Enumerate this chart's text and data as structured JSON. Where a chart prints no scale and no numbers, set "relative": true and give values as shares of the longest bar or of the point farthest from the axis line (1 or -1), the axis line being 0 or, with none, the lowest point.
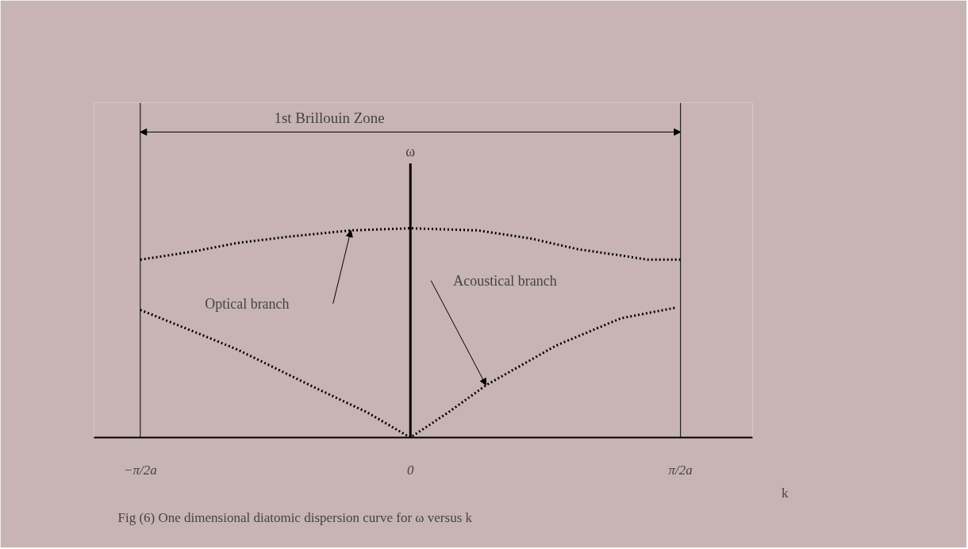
{
  "chart_data": {
    "type": "line",
    "relative": true,
    "xlabel": "k",
    "xlim": [
      -1.84,
      1.99
    ],
    "xticks": [
      {
        "value": -1.571,
        "label": "−π/2a"
      },
      0,
      {
        "value": 1.571,
        "label": "π/2a"
      }
    ],
    "grid": false,
    "line_style": "dotted",
    "series": [
      {
        "color": "#000000",
        "x": [
          -1.571,
          -1.257,
          -1.005,
          -0.707,
          -0.346,
          0.0,
          0.393,
          0.707,
          0.974,
          1.225,
          1.382,
          1.571
        ],
        "values": [
          0.85,
          0.89,
          0.93,
          0.96,
          0.99,
          1.0,
          0.99,
          0.95,
          0.9,
          0.87,
          0.85,
          0.85
        ]
      },
      {
        "color": "#000000",
        "x": [
          -1.571,
          -1.241,
          -1.005,
          -0.534,
          -0.251,
          0.0,
          0.22,
          0.44,
          0.848,
          1.225,
          1.539
        ],
        "values": [
          0.61,
          0.5,
          0.42,
          0.23,
          0.12,
          0.0,
          0.12,
          0.25,
          0.44,
          0.57,
          0.62
        ]
      }
    ],
    "ref_lines": [
      {
        "axis": "x",
        "value": -1.571
      },
      {
        "axis": "x",
        "value": 1.571
      }
    ],
    "annotations": [
      "1st Brillouin Zone",
      "ω",
      "Optical branch",
      "Acoustical branch",
      "Fig (6)    One dimensional diatomic dispersion curve for ω versus k"
    ]
  }
}
